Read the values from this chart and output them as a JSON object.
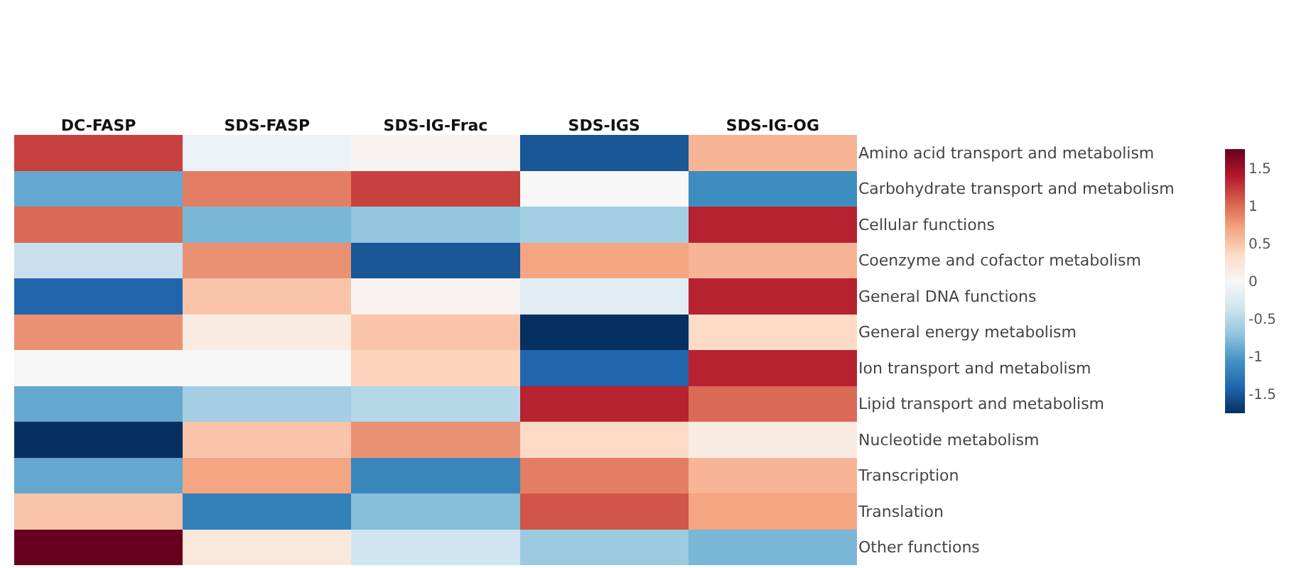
{
  "chart_data": {
    "type": "heatmap",
    "categories": [
      "DC-FASP",
      "SDS-FASP",
      "SDS-IG-Frac",
      "SDS-IGS",
      "SDS-IG-OG"
    ],
    "y_categories": [
      "Amino acid transport and metabolism",
      "Carbohydrate transport and metabolism",
      "Cellular functions",
      "Coenzyme and cofactor metabolism",
      "General DNA functions",
      "General energy metabolism",
      "Ion transport and metabolism",
      "Lipid transport and metabolism",
      "Nucleotide metabolism",
      "Transcription",
      "Translation",
      "Other functions"
    ],
    "cells": [
      [
        1.2,
        -0.1,
        0.05,
        -1.5,
        0.6
      ],
      [
        -0.9,
        0.9,
        1.2,
        0,
        -1.1
      ],
      [
        1.0,
        -0.8,
        -0.7,
        -0.6,
        1.35
      ],
      [
        -0.4,
        0.8,
        -1.5,
        0.7,
        0.6
      ],
      [
        -1.4,
        0.5,
        0.05,
        -0.2,
        1.35
      ],
      [
        0.8,
        0.15,
        0.5,
        -1.75,
        0.35
      ],
      [
        0,
        0,
        0.4,
        -1.4,
        1.35
      ],
      [
        -0.9,
        -0.6,
        -0.5,
        1.35,
        1.0
      ],
      [
        -1.75,
        0.5,
        0.8,
        0.35,
        0.15
      ],
      [
        -0.9,
        0.7,
        -1.15,
        0.9,
        0.6
      ],
      [
        0.5,
        -1.2,
        -0.75,
        1.1,
        0.7
      ],
      [
        1.75,
        0.2,
        -0.35,
        -0.65,
        -0.8
      ]
    ],
    "clim": [
      -1.75,
      1.75
    ],
    "cticks": [
      1.5,
      1,
      0.5,
      0,
      -0.5,
      -1,
      -1.5
    ]
  }
}
